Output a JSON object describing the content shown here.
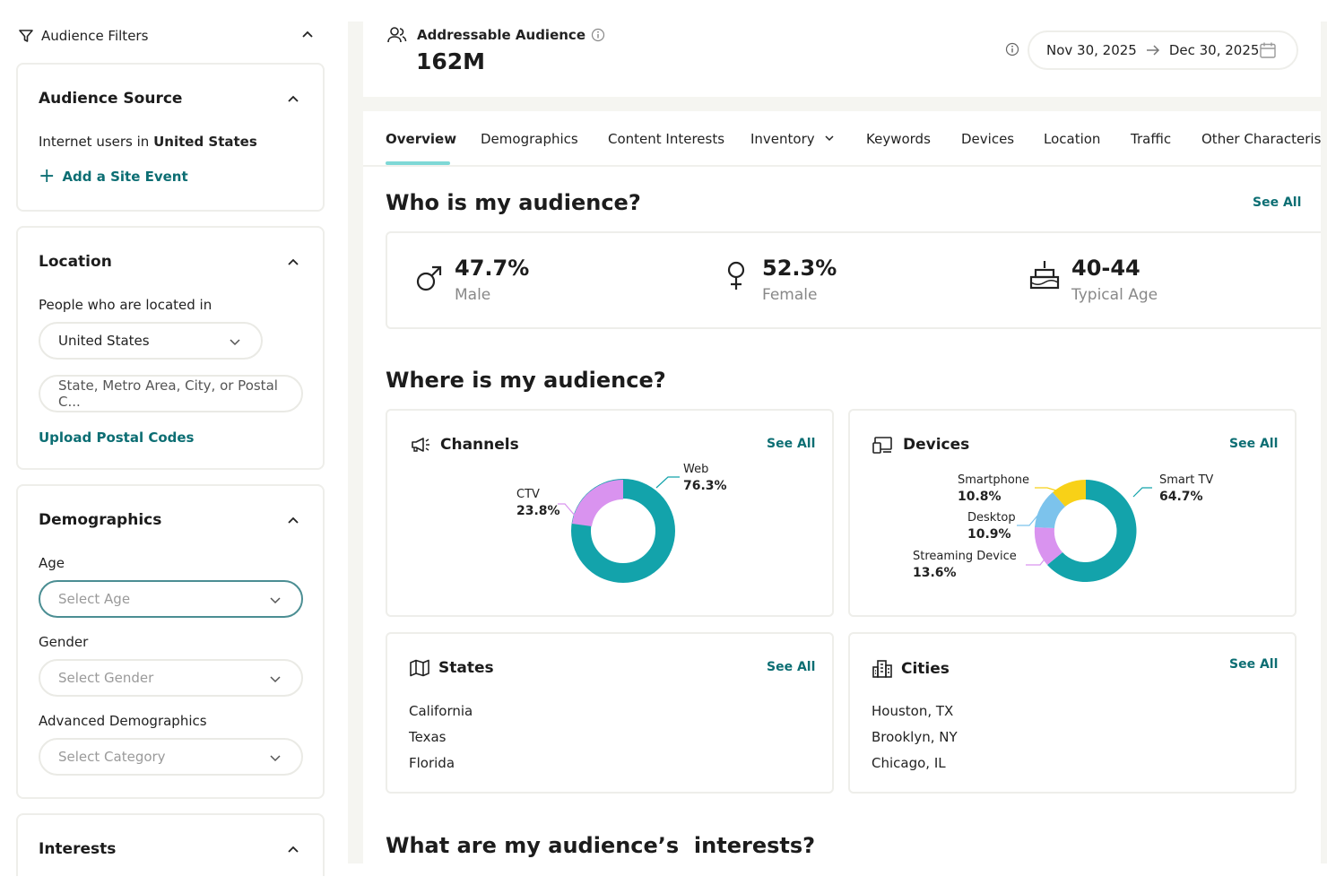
{
  "sidebar": {
    "header": "Audience Filters",
    "audience_source": {
      "title": "Audience Source",
      "desc_prefix": "Internet users in",
      "desc_country": "United States",
      "add_event": "Add a Site Event"
    },
    "location": {
      "title": "Location",
      "label": "People who are located in",
      "country_value": "United States",
      "search_placeholder": "State, Metro Area, City, or Postal C...",
      "upload": "Upload Postal Codes"
    },
    "demographics": {
      "title": "Demographics",
      "age_label": "Age",
      "age_placeholder": "Select Age",
      "gender_label": "Gender",
      "gender_placeholder": "Select Gender",
      "advanced_label": "Advanced Demographics",
      "advanced_placeholder": "Select Category"
    },
    "interests": {
      "title": "Interests"
    }
  },
  "header": {
    "label": "Addressable Audience",
    "value": "162M",
    "date_start": "Nov 30, 2025",
    "date_end": "Dec 30, 2025"
  },
  "tabs": [
    {
      "label": "Overview"
    },
    {
      "label": "Demographics"
    },
    {
      "label": "Content Interests"
    },
    {
      "label": "Inventory"
    },
    {
      "label": "Keywords"
    },
    {
      "label": "Devices"
    },
    {
      "label": "Location"
    },
    {
      "label": "Traffic"
    },
    {
      "label": "Other Characterist"
    }
  ],
  "who": {
    "title": "Who is my audience?",
    "see_all": "See All",
    "male_value": "47.7%",
    "male_label": "Male",
    "female_value": "52.3%",
    "female_label": "Female",
    "age_value": "40-44",
    "age_label": "Typical Age"
  },
  "where": {
    "title": "Where is my audience?",
    "channels": {
      "title": "Channels",
      "see_all": "See All",
      "segments": [
        {
          "name": "Web",
          "value": "76.3%",
          "color": "#13a3ab"
        },
        {
          "name": "CTV",
          "value": "23.8%",
          "color": "#d993ef"
        }
      ]
    },
    "devices": {
      "title": "Devices",
      "see_all": "See All",
      "segments": [
        {
          "name": "Smart TV",
          "value": "64.7%",
          "color": "#13a3ab"
        },
        {
          "name": "Streaming Device",
          "value": "13.6%",
          "color": "#d993ef"
        },
        {
          "name": "Desktop",
          "value": "10.9%",
          "color": "#7cc3ec"
        },
        {
          "name": "Smartphone",
          "value": "10.8%",
          "color": "#f8d117"
        }
      ]
    },
    "states": {
      "title": "States",
      "see_all": "See All",
      "items": [
        "California",
        "Texas",
        "Florida"
      ]
    },
    "cities": {
      "title": "Cities",
      "see_all": "See All",
      "items": [
        "Houston, TX",
        "Brooklyn, NY",
        "Chicago, IL"
      ]
    }
  },
  "interests_section": {
    "title": "What are my audience’s  interests?"
  }
}
